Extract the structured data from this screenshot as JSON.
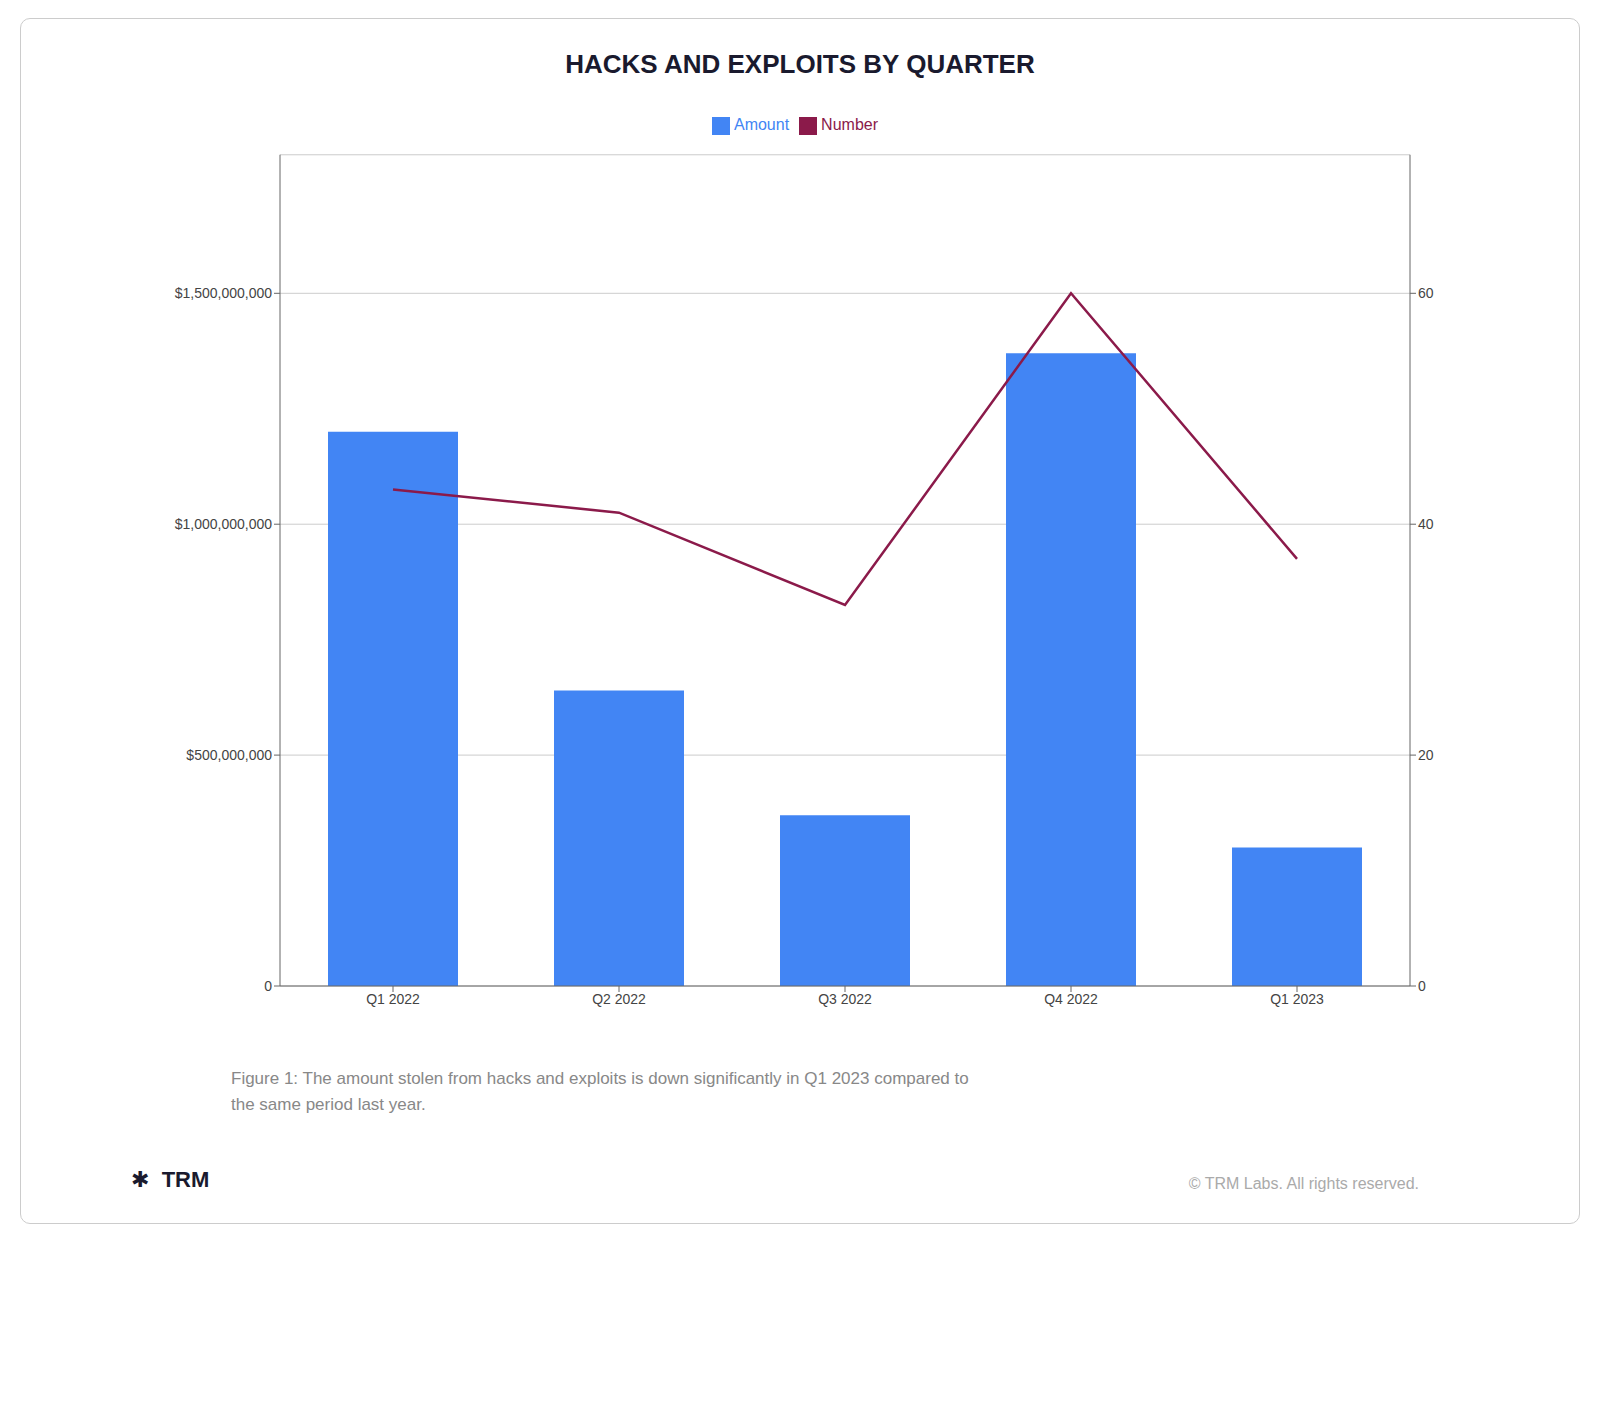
{
  "chart_data": {
    "type": "bar",
    "title": "HACKS AND EXPLOITS BY QUARTER",
    "categories": [
      "Q1 2022",
      "Q2 2022",
      "Q3 2022",
      "Q4 2022",
      "Q1 2023"
    ],
    "series": [
      {
        "name": "Amount",
        "type": "bar",
        "color": "#4285F4",
        "values": [
          1200000000,
          640000000,
          370000000,
          1370000000,
          300000000
        ]
      },
      {
        "name": "Number",
        "type": "line",
        "axis": "y2",
        "color": "#8B1A4A",
        "values": [
          43,
          41,
          33,
          60,
          37
        ]
      }
    ],
    "ylim": [
      0,
      1800000000
    ],
    "yticks": [
      0,
      {
        "value": 500000000,
        "label": "$500,000,000"
      },
      {
        "value": 1000000000,
        "label": "$1,000,000,000"
      },
      {
        "value": 1500000000,
        "label": "$1,500,000,000"
      }
    ],
    "y2lim": [
      0,
      72
    ],
    "y2ticks": [
      0,
      20,
      40,
      60
    ],
    "grid": true,
    "legend": "top",
    "annotations": [
      "Figure 1: The amount stolen from hacks and exploits is down significantly in Q1 2023 compared to",
      "the same period last year.",
      "© TRM Labs. All rights reserved.",
      "✱  TRM"
    ]
  }
}
